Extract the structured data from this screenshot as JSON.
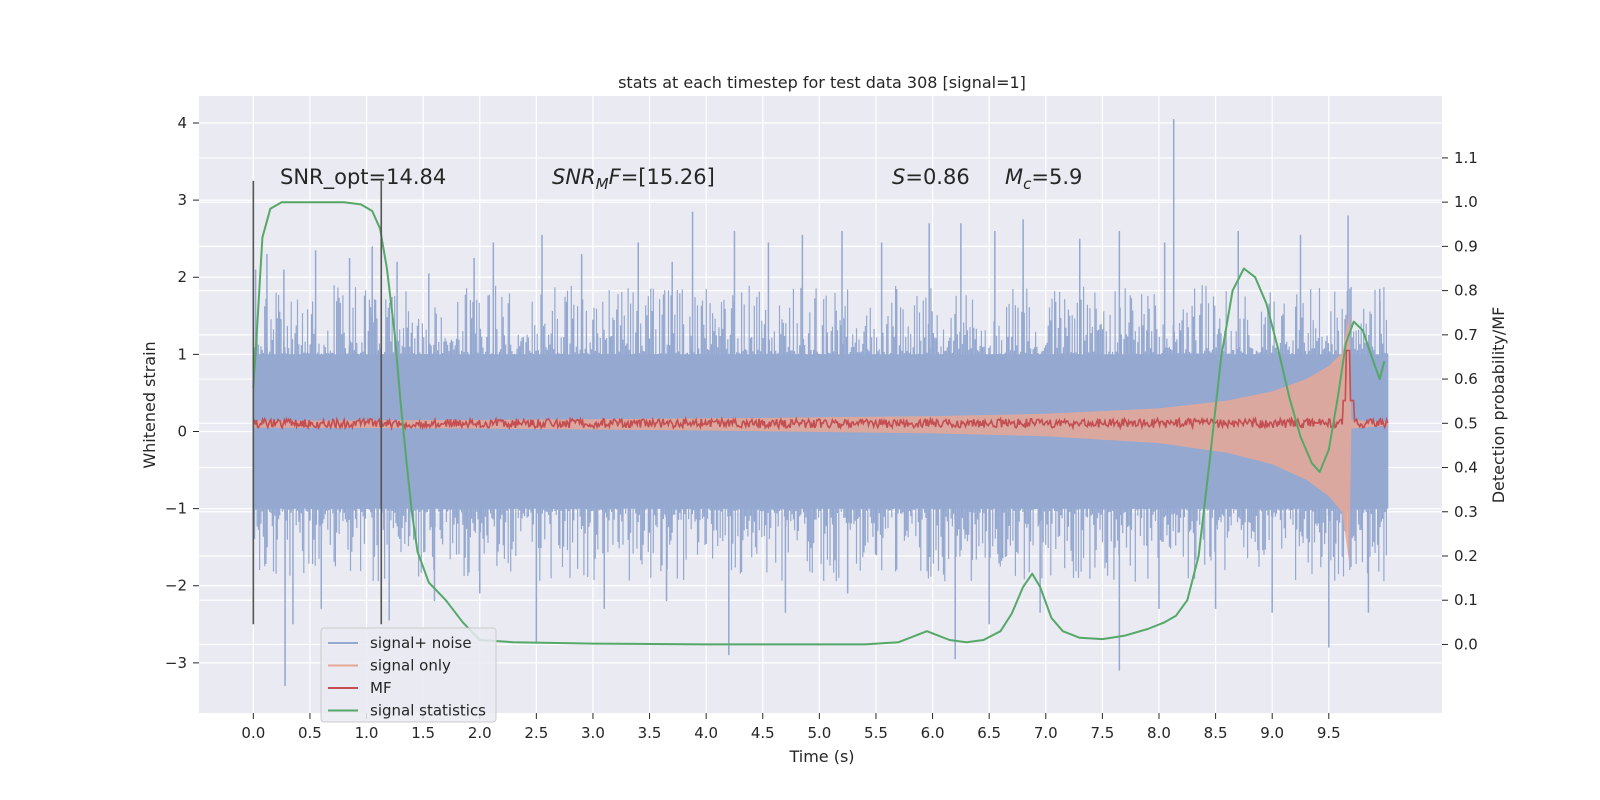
{
  "chart_data": {
    "type": "line",
    "title": "stats at each timestep for test data 308 [signal=1]",
    "xlabel": "Time (s)",
    "ylabel": "Whitened strain",
    "y2label": "Detection probability/MF",
    "xlim": [
      -0.48,
      10.5
    ],
    "ylim": [
      -3.65,
      4.35
    ],
    "y2lim": [
      -0.155,
      1.24
    ],
    "x_ticks": [
      "0.0",
      "0.5",
      "1.0",
      "1.5",
      "2.0",
      "2.5",
      "3.0",
      "3.5",
      "4.0",
      "4.5",
      "5.0",
      "5.5",
      "6.0",
      "6.5",
      "7.0",
      "7.5",
      "8.0",
      "8.5",
      "9.0",
      "9.5"
    ],
    "y_ticks": [
      "4",
      "3",
      "2",
      "1",
      "0",
      "−1",
      "−2",
      "−3"
    ],
    "y2_ticks": [
      "1.1",
      "1.0",
      "0.9",
      "0.8",
      "0.7",
      "0.6",
      "0.5",
      "0.4",
      "0.3",
      "0.2",
      "0.1",
      "0.0"
    ],
    "grid": true,
    "legend_position": "lower-left",
    "annotations": {
      "snr_opt": "SNR_opt=14.84",
      "snr_mf_sym": "SNR",
      "snr_mf_sub": "M",
      "snr_mf_tail": "F",
      "snr_mf_val": "=[15.26]",
      "s_sym": "S",
      "s_val": "=0.86",
      "mc_sym": "M",
      "mc_sub": "c",
      "mc_val": "=5.9"
    },
    "vlines": [
      {
        "x": 0.0,
        "y": [
          -2.5,
          3.25
        ],
        "color": "#555555"
      },
      {
        "x": 1.13,
        "y": [
          -2.5,
          3.25
        ],
        "color": "#555555"
      }
    ],
    "series": [
      {
        "name": "signal+ noise",
        "color": "#94a8d0",
        "axis": "left",
        "kind": "noise_band",
        "x_range": [
          0.0,
          10.02
        ],
        "envelope": {
          "x": [
            0.0,
            10.02
          ],
          "low": [
            -1.0,
            -1.0
          ],
          "high": [
            1.0,
            1.0
          ]
        },
        "spikes": [
          {
            "x": 0.02,
            "y": 2.1
          },
          {
            "x": 0.12,
            "y": 2.3
          },
          {
            "x": 0.27,
            "y": 2.1
          },
          {
            "x": 0.55,
            "y": 2.35
          },
          {
            "x": 0.85,
            "y": 2.25
          },
          {
            "x": 1.05,
            "y": 2.4
          },
          {
            "x": 1.27,
            "y": 2.2
          },
          {
            "x": 1.55,
            "y": 2.05
          },
          {
            "x": 1.95,
            "y": 2.25
          },
          {
            "x": 2.12,
            "y": 2.45
          },
          {
            "x": 2.55,
            "y": 2.55
          },
          {
            "x": 2.9,
            "y": 2.3
          },
          {
            "x": 3.4,
            "y": 2.45
          },
          {
            "x": 3.7,
            "y": 2.2
          },
          {
            "x": 3.88,
            "y": 2.85
          },
          {
            "x": 4.25,
            "y": 2.6
          },
          {
            "x": 4.55,
            "y": 2.45
          },
          {
            "x": 4.85,
            "y": 2.55
          },
          {
            "x": 5.2,
            "y": 2.6
          },
          {
            "x": 5.55,
            "y": 2.45
          },
          {
            "x": 5.97,
            "y": 2.7
          },
          {
            "x": 6.25,
            "y": 2.7
          },
          {
            "x": 6.55,
            "y": 2.6
          },
          {
            "x": 6.8,
            "y": 2.75
          },
          {
            "x": 7.3,
            "y": 2.5
          },
          {
            "x": 7.65,
            "y": 2.6
          },
          {
            "x": 8.13,
            "y": 4.05
          },
          {
            "x": 8.05,
            "y": 2.45
          },
          {
            "x": 8.7,
            "y": 2.6
          },
          {
            "x": 9.25,
            "y": 2.55
          },
          {
            "x": 9.67,
            "y": 2.8
          },
          {
            "x": 9.95,
            "y": 1.85
          },
          {
            "x": 0.28,
            "y": -3.3
          },
          {
            "x": 0.35,
            "y": -2.5
          },
          {
            "x": 0.6,
            "y": -2.3
          },
          {
            "x": 1.2,
            "y": -2.45
          },
          {
            "x": 1.6,
            "y": -2.2
          },
          {
            "x": 2.0,
            "y": -2.1
          },
          {
            "x": 2.5,
            "y": -2.75
          },
          {
            "x": 3.1,
            "y": -2.3
          },
          {
            "x": 3.65,
            "y": -2.2
          },
          {
            "x": 4.2,
            "y": -2.9
          },
          {
            "x": 4.7,
            "y": -2.35
          },
          {
            "x": 5.25,
            "y": -2.1
          },
          {
            "x": 6.2,
            "y": -2.95
          },
          {
            "x": 6.5,
            "y": -2.5
          },
          {
            "x": 6.95,
            "y": -2.35
          },
          {
            "x": 7.65,
            "y": -3.1
          },
          {
            "x": 8.0,
            "y": -2.3
          },
          {
            "x": 8.5,
            "y": -2.3
          },
          {
            "x": 9.0,
            "y": -2.35
          },
          {
            "x": 9.5,
            "y": -2.8
          },
          {
            "x": 9.85,
            "y": -2.35
          }
        ]
      },
      {
        "name": "signal only",
        "color": "#e6a896",
        "axis": "left",
        "kind": "chirp",
        "points": [
          {
            "x": 0.0,
            "amp": 0.04
          },
          {
            "x": 2.0,
            "amp": 0.05
          },
          {
            "x": 4.0,
            "amp": 0.07
          },
          {
            "x": 6.0,
            "amp": 0.1
          },
          {
            "x": 7.0,
            "amp": 0.13
          },
          {
            "x": 8.0,
            "amp": 0.2
          },
          {
            "x": 8.6,
            "amp": 0.3
          },
          {
            "x": 9.0,
            "amp": 0.42
          },
          {
            "x": 9.3,
            "amp": 0.58
          },
          {
            "x": 9.5,
            "amp": 0.75
          },
          {
            "x": 9.62,
            "amp": 0.92
          },
          {
            "x": 9.68,
            "amp": 1.45
          },
          {
            "x": 9.7,
            "amp": 0.05
          },
          {
            "x": 10.02,
            "amp": 0.02
          }
        ]
      },
      {
        "name": "MF",
        "color": "#c44e52",
        "axis": "left",
        "kind": "trace",
        "baseline": 0.1,
        "jitter": 0.06,
        "x_range": [
          0.0,
          10.02
        ],
        "peak": {
          "x": 9.67,
          "y": 1.05
        }
      },
      {
        "name": "signal statistics",
        "color": "#55a868",
        "axis": "right",
        "kind": "line",
        "x": [
          0.0,
          0.03,
          0.08,
          0.15,
          0.25,
          0.4,
          0.6,
          0.8,
          0.95,
          1.05,
          1.12,
          1.18,
          1.25,
          1.3,
          1.35,
          1.4,
          1.45,
          1.55,
          1.7,
          1.85,
          2.0,
          2.3,
          3.0,
          4.0,
          5.0,
          5.4,
          5.7,
          5.85,
          5.95,
          6.05,
          6.15,
          6.3,
          6.45,
          6.6,
          6.7,
          6.8,
          6.88,
          6.95,
          7.05,
          7.15,
          7.3,
          7.5,
          7.7,
          7.9,
          8.05,
          8.15,
          8.25,
          8.35,
          8.45,
          8.55,
          8.65,
          8.75,
          8.85,
          8.95,
          9.05,
          9.15,
          9.25,
          9.35,
          9.42,
          9.5,
          9.58,
          9.65,
          9.72,
          9.8,
          9.88,
          9.95,
          9.99
        ],
        "y": [
          0.58,
          0.7,
          0.92,
          0.985,
          1.0,
          1.0,
          1.0,
          1.0,
          0.995,
          0.98,
          0.94,
          0.85,
          0.7,
          0.55,
          0.42,
          0.3,
          0.21,
          0.14,
          0.1,
          0.05,
          0.01,
          0.005,
          0.002,
          0.0,
          0.0,
          0.0,
          0.005,
          0.02,
          0.03,
          0.02,
          0.01,
          0.005,
          0.01,
          0.03,
          0.07,
          0.13,
          0.16,
          0.13,
          0.06,
          0.03,
          0.015,
          0.012,
          0.02,
          0.035,
          0.05,
          0.065,
          0.1,
          0.2,
          0.42,
          0.65,
          0.8,
          0.85,
          0.83,
          0.77,
          0.67,
          0.56,
          0.47,
          0.41,
          0.39,
          0.44,
          0.56,
          0.68,
          0.73,
          0.71,
          0.65,
          0.6,
          0.64
        ]
      }
    ]
  }
}
